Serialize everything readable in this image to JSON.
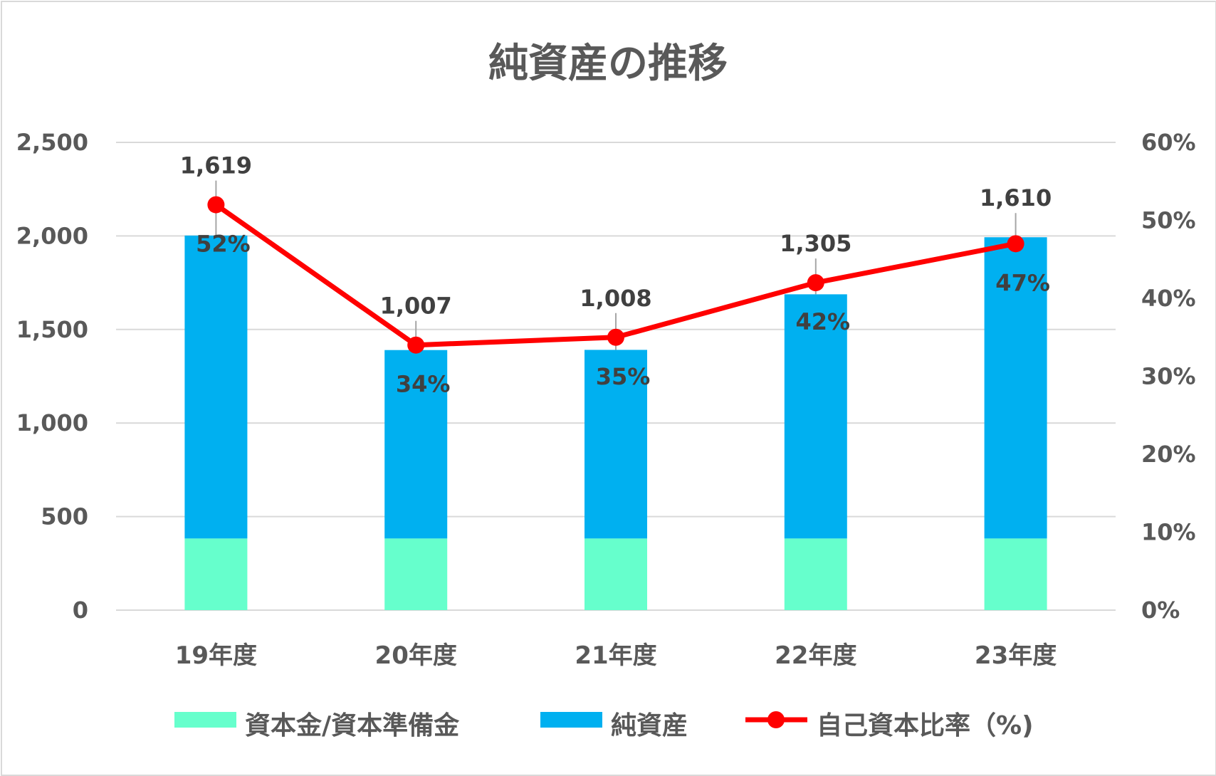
{
  "chart_data": {
    "type": "bar",
    "title": "純資産の推移",
    "categories": [
      "19年度",
      "20年度",
      "21年度",
      "22年度",
      "23年度"
    ],
    "series": [
      {
        "name": "資本金/資本準備金",
        "type": "bar",
        "axis": "left",
        "stack": "main",
        "color": "#66FFCC",
        "values": [
          383,
          383,
          383,
          383,
          383
        ]
      },
      {
        "name": "純資産",
        "type": "bar",
        "axis": "left",
        "stack": "main",
        "color": "#00B0F0",
        "values": [
          1619,
          1007,
          1008,
          1305,
          1610
        ],
        "labels": [
          "1,619",
          "1,007",
          "1,008",
          "1,305",
          "1,610"
        ]
      },
      {
        "name": "自己資本比率（%)",
        "type": "line",
        "axis": "right",
        "color": "#FF0000",
        "values": [
          52,
          34,
          35,
          42,
          47
        ],
        "labels": [
          "52%",
          "34%",
          "35%",
          "42%",
          "47%"
        ]
      }
    ],
    "y_left": {
      "min": 0,
      "max": 2500,
      "ticks": [
        0,
        500,
        1000,
        1500,
        2000,
        2500
      ],
      "tick_labels": [
        "0",
        "500",
        "1,000",
        "1,500",
        "2,000",
        "2,500"
      ]
    },
    "y_right": {
      "min": 0,
      "max": 60,
      "ticks": [
        0,
        10,
        20,
        30,
        40,
        50,
        60
      ],
      "tick_labels": [
        "0%",
        "10%",
        "20%",
        "30%",
        "40%",
        "50%",
        "60%"
      ]
    },
    "grid": true,
    "legend_position": "bottom"
  }
}
